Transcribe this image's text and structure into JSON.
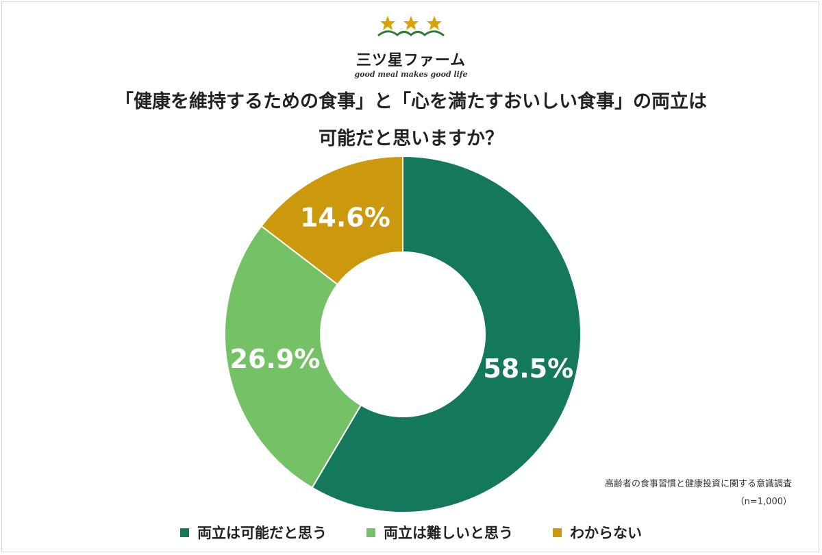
{
  "logo": {
    "name": "三ツ星ファーム",
    "tagline": "good meal makes good life",
    "star_color": "#d9a400",
    "leaf_color": "#2e7d32"
  },
  "title": {
    "line1": "「健康を維持するための食事」と「心を満たすおいしい食事」の両立は",
    "line2": "可能だと思いますか？"
  },
  "source": {
    "line1": "高齢者の食事習慣と健康投資に関する意識調査",
    "line2": "（n=1,000）"
  },
  "chart_data": {
    "type": "pie",
    "donut": true,
    "categories": [
      "両立は可能だと思う",
      "両立は難しいと思う",
      "わからない"
    ],
    "values": [
      58.5,
      26.9,
      14.6
    ],
    "labels": [
      "58.5%",
      "26.9%",
      "14.6%"
    ],
    "colors": [
      "#13785c",
      "#75c266",
      "#cc990d"
    ],
    "legend": "bottom"
  }
}
